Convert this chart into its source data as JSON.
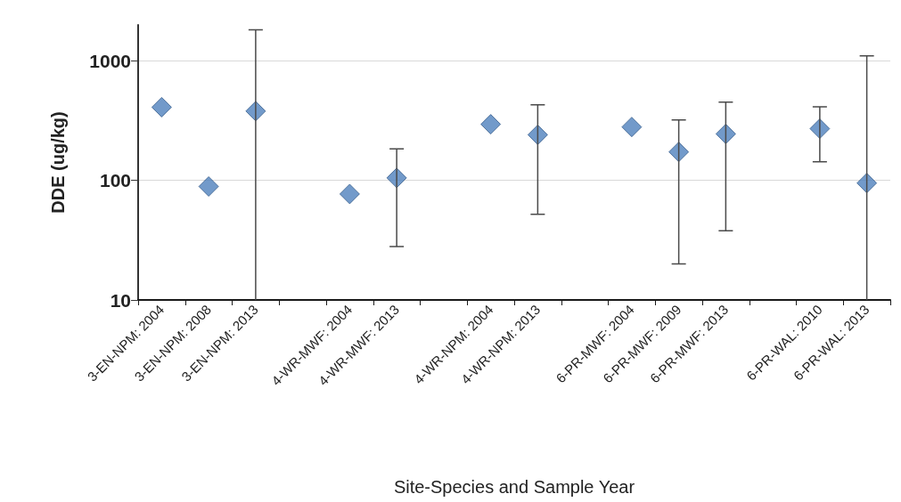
{
  "chart_data": {
    "type": "scatter",
    "xlabel": "Site-Species and Sample Year",
    "ylabel": "DDE (ug/kg)",
    "categories": [
      "3-EN-NPM: 2004",
      "3-EN-NPM: 2008",
      "3-EN-NPM: 2013",
      null,
      "4-WR-MWF: 2004",
      "4-WR-MWF: 2013",
      null,
      "4-WR-NPM: 2004",
      "4-WR-NPM: 2013",
      null,
      "6-PR-MWF: 2004",
      "6-PR-MWF: 2009",
      "6-PR-MWF: 2013",
      null,
      "6-PR-WAL: 2010",
      "6-PR-WAL: 2013"
    ],
    "values": [
      410,
      89,
      380,
      null,
      77,
      105,
      null,
      295,
      241,
      null,
      280,
      173,
      245,
      null,
      271,
      95
    ],
    "errors": [
      null,
      null,
      [
        10,
        1820
      ],
      null,
      null,
      [
        28,
        184
      ],
      null,
      null,
      [
        52,
        430
      ],
      null,
      null,
      [
        20,
        321
      ],
      [
        38,
        452
      ],
      null,
      [
        143,
        413
      ],
      [
        10,
        1100
      ]
    ],
    "color": "#4f81bd",
    "marker": "diamond",
    "log": true,
    "grid": "y",
    "ylim": [
      10,
      2000
    ],
    "yticks": [
      10,
      100,
      1000
    ]
  }
}
